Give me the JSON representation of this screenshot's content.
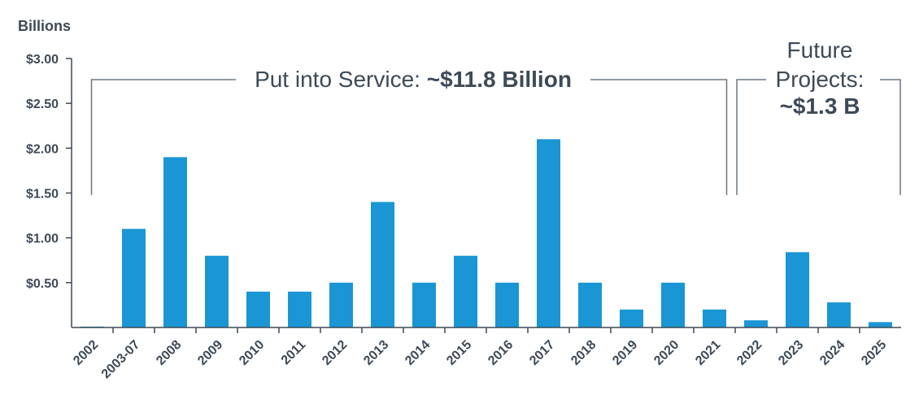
{
  "chart_data": {
    "type": "bar",
    "ylabel": "Billions",
    "ylim": [
      0,
      3.0
    ],
    "yticks": [
      "$0.50",
      "$1.00",
      "$1.50",
      "$2.00",
      "$2.50",
      "$3.00"
    ],
    "ytick_values": [
      0.5,
      1.0,
      1.5,
      2.0,
      2.5,
      3.0
    ],
    "categories": [
      "2002",
      "2003-07",
      "2008",
      "2009",
      "2010",
      "2011",
      "2012",
      "2013",
      "2014",
      "2015",
      "2016",
      "2017",
      "2018",
      "2019",
      "2020",
      "2021",
      "2022",
      "2023",
      "2024",
      "2025"
    ],
    "values": [
      0.01,
      1.1,
      1.9,
      0.8,
      0.4,
      0.4,
      0.5,
      1.4,
      0.5,
      0.8,
      0.5,
      2.1,
      0.5,
      0.2,
      0.5,
      0.2,
      0.08,
      0.84,
      0.28,
      0.06
    ],
    "bar_color": "#1a96d4",
    "grid": false,
    "annotations": {
      "service": {
        "text_plain": "Put into Service: ",
        "text_bold": "~$11.8 Billion",
        "range": [
          "2002",
          "2021"
        ]
      },
      "future": {
        "line1": "Future",
        "line2": "Projects:",
        "line3": "~$1.3 B",
        "range": [
          "2022",
          "2025"
        ]
      }
    }
  }
}
